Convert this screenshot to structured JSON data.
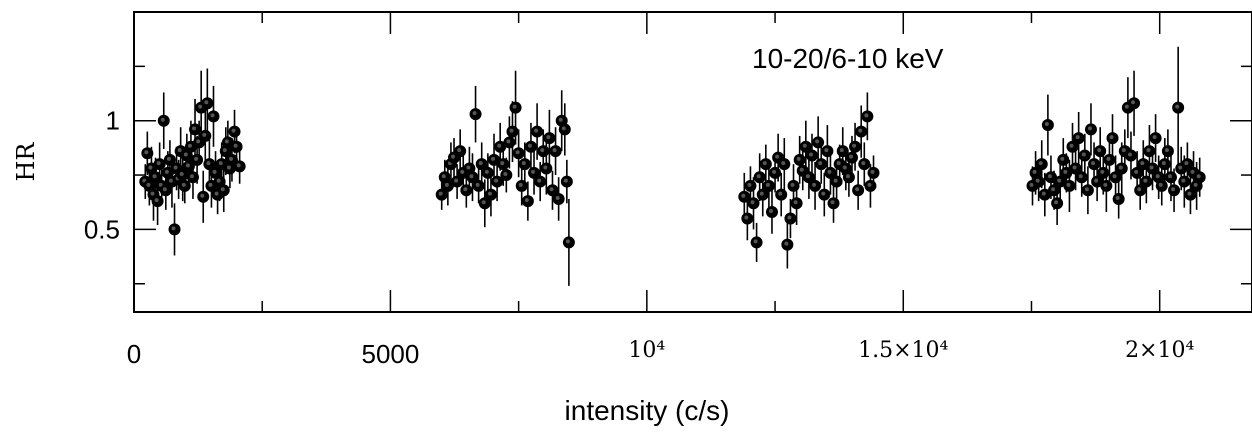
{
  "chart_data": {
    "type": "scatter",
    "title": "",
    "annotation": "10-20/6-10 keV",
    "xlabel": "intensity (c/s)",
    "ylabel": "HR",
    "xlim": [
      0,
      21800
    ],
    "ylim": [
      0.12,
      1.5
    ],
    "x_ticks": [
      {
        "value": 0,
        "label": "0",
        "style": "sans"
      },
      {
        "value": 5000,
        "label": "5000",
        "style": "sans"
      },
      {
        "value": 10000,
        "label": "10⁴",
        "style": "serif"
      },
      {
        "value": 15000,
        "label": "1.5×10⁴",
        "style": "serif"
      },
      {
        "value": 20000,
        "label": "2×10⁴",
        "style": "serif"
      }
    ],
    "y_ticks": [
      {
        "value": 0.5,
        "label": "0.5"
      },
      {
        "value": 1,
        "label": "1"
      }
    ],
    "error_bars": true,
    "points": [
      [
        220,
        0.72,
        0.08
      ],
      [
        260,
        0.85,
        0.1
      ],
      [
        300,
        0.7,
        0.09
      ],
      [
        340,
        0.78,
        0.1
      ],
      [
        380,
        0.66,
        0.12
      ],
      [
        420,
        0.74,
        0.09
      ],
      [
        460,
        0.63,
        0.11
      ],
      [
        500,
        0.8,
        0.1
      ],
      [
        540,
        0.7,
        0.08
      ],
      [
        580,
        1.0,
        0.13
      ],
      [
        620,
        0.68,
        0.09
      ],
      [
        660,
        0.76,
        0.1
      ],
      [
        700,
        0.82,
        0.09
      ],
      [
        740,
        0.72,
        0.12
      ],
      [
        790,
        0.5,
        0.12
      ],
      [
        830,
        0.78,
        0.1
      ],
      [
        870,
        0.73,
        0.09
      ],
      [
        910,
        0.86,
        0.11
      ],
      [
        950,
        0.75,
        0.12
      ],
      [
        990,
        0.7,
        0.08
      ],
      [
        1030,
        0.84,
        0.1
      ],
      [
        1070,
        0.79,
        0.09
      ],
      [
        1110,
        0.88,
        0.12
      ],
      [
        1150,
        0.74,
        0.1
      ],
      [
        1190,
        0.96,
        0.14
      ],
      [
        1230,
        0.82,
        0.11
      ],
      [
        1270,
        0.9,
        0.1
      ],
      [
        1310,
        1.06,
        0.17
      ],
      [
        1350,
        0.65,
        0.12
      ],
      [
        1390,
        0.93,
        0.14
      ],
      [
        1430,
        1.08,
        0.16
      ],
      [
        1470,
        0.8,
        0.12
      ],
      [
        1510,
        0.7,
        0.1
      ],
      [
        1550,
        1.02,
        0.14
      ],
      [
        1590,
        0.76,
        0.1
      ],
      [
        1630,
        0.66,
        0.09
      ],
      [
        1670,
        0.72,
        0.09
      ],
      [
        1710,
        0.8,
        0.1
      ],
      [
        1750,
        0.68,
        0.1
      ],
      [
        1790,
        0.86,
        0.11
      ],
      [
        1830,
        0.9,
        0.1
      ],
      [
        1870,
        0.78,
        0.09
      ],
      [
        1910,
        0.82,
        0.1
      ],
      [
        1960,
        0.95,
        0.1
      ],
      [
        2000,
        0.88,
        0.09
      ],
      [
        2060,
        0.79,
        0.08
      ],
      [
        6000,
        0.66,
        0.07
      ],
      [
        6060,
        0.74,
        0.08
      ],
      [
        6120,
        0.7,
        0.09
      ],
      [
        6180,
        0.8,
        0.1
      ],
      [
        6240,
        0.83,
        0.09
      ],
      [
        6300,
        0.72,
        0.08
      ],
      [
        6360,
        0.86,
        0.1
      ],
      [
        6420,
        0.76,
        0.09
      ],
      [
        6480,
        0.68,
        0.08
      ],
      [
        6540,
        0.78,
        0.1
      ],
      [
        6600,
        0.74,
        0.11
      ],
      [
        6660,
        1.03,
        0.13
      ],
      [
        6720,
        0.7,
        0.08
      ],
      [
        6780,
        0.8,
        0.1
      ],
      [
        6840,
        0.62,
        0.11
      ],
      [
        6900,
        0.76,
        0.09
      ],
      [
        6960,
        0.66,
        0.1
      ],
      [
        7020,
        0.82,
        0.12
      ],
      [
        7080,
        0.72,
        0.09
      ],
      [
        7140,
        0.88,
        0.11
      ],
      [
        7200,
        0.8,
        0.1
      ],
      [
        7260,
        0.75,
        0.08
      ],
      [
        7320,
        0.9,
        0.12
      ],
      [
        7380,
        0.95,
        0.14
      ],
      [
        7440,
        1.06,
        0.17
      ],
      [
        7500,
        0.85,
        0.11
      ],
      [
        7560,
        0.7,
        0.09
      ],
      [
        7620,
        0.8,
        0.1
      ],
      [
        7680,
        0.63,
        0.09
      ],
      [
        7740,
        0.88,
        0.11
      ],
      [
        7800,
        0.76,
        0.1
      ],
      [
        7860,
        0.95,
        0.13
      ],
      [
        7920,
        0.72,
        0.09
      ],
      [
        7980,
        0.86,
        0.1
      ],
      [
        8040,
        0.78,
        0.12
      ],
      [
        8100,
        0.92,
        0.13
      ],
      [
        8160,
        0.68,
        0.09
      ],
      [
        8220,
        0.86,
        0.11
      ],
      [
        8280,
        0.64,
        0.1
      ],
      [
        8340,
        1.0,
        0.14
      ],
      [
        8400,
        0.96,
        0.12
      ],
      [
        8440,
        0.72,
        0.1
      ],
      [
        8480,
        0.44,
        0.2
      ],
      [
        11900,
        0.65,
        0.11
      ],
      [
        11960,
        0.55,
        0.1
      ],
      [
        12020,
        0.7,
        0.09
      ],
      [
        12080,
        0.62,
        0.12
      ],
      [
        12140,
        0.44,
        0.09
      ],
      [
        12200,
        0.74,
        0.11
      ],
      [
        12260,
        0.66,
        0.1
      ],
      [
        12320,
        0.8,
        0.09
      ],
      [
        12380,
        0.7,
        0.12
      ],
      [
        12440,
        0.58,
        0.1
      ],
      [
        12500,
        0.76,
        0.09
      ],
      [
        12560,
        0.83,
        0.11
      ],
      [
        12620,
        0.66,
        0.1
      ],
      [
        12680,
        0.8,
        0.12
      ],
      [
        12740,
        0.43,
        0.11
      ],
      [
        12800,
        0.55,
        0.09
      ],
      [
        12860,
        0.7,
        0.1
      ],
      [
        12920,
        0.62,
        0.1
      ],
      [
        12980,
        0.82,
        0.11
      ],
      [
        13040,
        0.77,
        0.09
      ],
      [
        13100,
        0.88,
        0.12
      ],
      [
        13160,
        0.74,
        0.1
      ],
      [
        13220,
        0.84,
        0.1
      ],
      [
        13280,
        0.7,
        0.11
      ],
      [
        13340,
        0.9,
        0.12
      ],
      [
        13400,
        0.8,
        0.09
      ],
      [
        13460,
        0.66,
        0.1
      ],
      [
        13520,
        0.86,
        0.12
      ],
      [
        13580,
        0.76,
        0.1
      ],
      [
        13640,
        0.62,
        0.09
      ],
      [
        13700,
        0.72,
        0.1
      ],
      [
        13760,
        0.8,
        0.09
      ],
      [
        13820,
        0.86,
        0.11
      ],
      [
        13880,
        0.78,
        0.1
      ],
      [
        13940,
        0.74,
        0.09
      ],
      [
        14000,
        0.83,
        0.1
      ],
      [
        14060,
        0.88,
        0.11
      ],
      [
        14120,
        0.68,
        0.09
      ],
      [
        14180,
        0.95,
        0.12
      ],
      [
        14240,
        0.8,
        0.1
      ],
      [
        14300,
        1.02,
        0.11
      ],
      [
        14360,
        0.7,
        0.1
      ],
      [
        14420,
        0.76,
        0.08
      ],
      [
        17520,
        0.7,
        0.09
      ],
      [
        17580,
        0.76,
        0.1
      ],
      [
        17640,
        0.72,
        0.09
      ],
      [
        17700,
        0.8,
        0.11
      ],
      [
        17760,
        0.66,
        0.1
      ],
      [
        17820,
        0.98,
        0.14
      ],
      [
        17880,
        0.74,
        0.1
      ],
      [
        17940,
        0.68,
        0.09
      ],
      [
        18000,
        0.62,
        0.1
      ],
      [
        18060,
        0.72,
        0.11
      ],
      [
        18120,
        0.82,
        0.1
      ],
      [
        18180,
        0.76,
        0.09
      ],
      [
        18240,
        0.7,
        0.12
      ],
      [
        18300,
        0.88,
        0.11
      ],
      [
        18360,
        0.78,
        0.1
      ],
      [
        18420,
        0.92,
        0.12
      ],
      [
        18480,
        0.74,
        0.09
      ],
      [
        18540,
        0.84,
        0.1
      ],
      [
        18600,
        0.68,
        0.11
      ],
      [
        18660,
        0.96,
        0.12
      ],
      [
        18720,
        0.8,
        0.1
      ],
      [
        18780,
        0.72,
        0.09
      ],
      [
        18840,
        0.86,
        0.11
      ],
      [
        18900,
        0.76,
        0.1
      ],
      [
        18960,
        0.7,
        0.12
      ],
      [
        19020,
        0.82,
        0.1
      ],
      [
        19080,
        0.92,
        0.11
      ],
      [
        19140,
        0.74,
        0.1
      ],
      [
        19200,
        0.64,
        0.09
      ],
      [
        19260,
        0.78,
        0.12
      ],
      [
        19320,
        0.86,
        0.1
      ],
      [
        19380,
        1.06,
        0.14
      ],
      [
        19440,
        0.84,
        0.11
      ],
      [
        19500,
        1.08,
        0.15
      ],
      [
        19560,
        0.76,
        0.1
      ],
      [
        19620,
        0.68,
        0.09
      ],
      [
        19680,
        0.8,
        0.11
      ],
      [
        19740,
        0.72,
        0.1
      ],
      [
        19800,
        0.86,
        0.12
      ],
      [
        19860,
        0.78,
        0.1
      ],
      [
        19920,
        0.92,
        0.11
      ],
      [
        19980,
        0.74,
        0.1
      ],
      [
        20040,
        0.7,
        0.09
      ],
      [
        20100,
        0.8,
        0.12
      ],
      [
        20160,
        0.86,
        0.1
      ],
      [
        20220,
        0.74,
        0.11
      ],
      [
        20280,
        0.68,
        0.1
      ],
      [
        20360,
        1.06,
        0.28
      ],
      [
        20420,
        0.78,
        0.1
      ],
      [
        20480,
        0.72,
        0.12
      ],
      [
        20540,
        0.8,
        0.1
      ],
      [
        20600,
        0.66,
        0.09
      ],
      [
        20660,
        0.76,
        0.1
      ],
      [
        20720,
        0.7,
        0.11
      ],
      [
        20780,
        0.74,
        0.09
      ]
    ]
  }
}
